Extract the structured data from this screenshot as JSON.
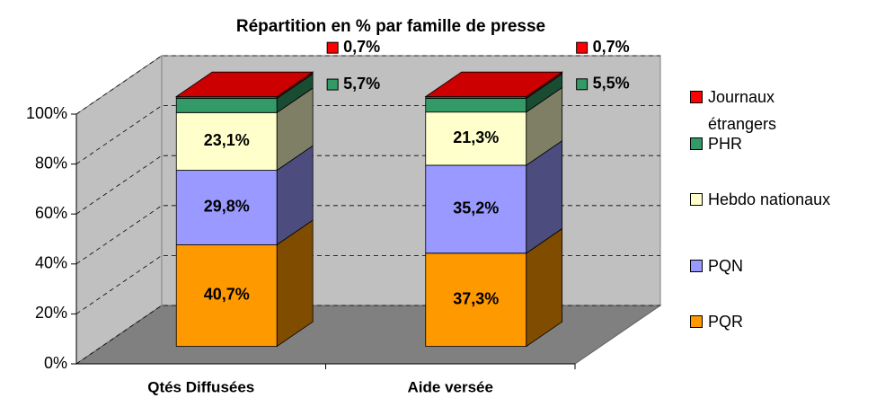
{
  "chart_data": {
    "type": "bar3d_stacked",
    "title": "Répartition en % par famille de presse",
    "categories": [
      "Qtés Diffusées",
      "Aide versée"
    ],
    "series": [
      {
        "name": "PQR",
        "color": "#ff9900",
        "values": [
          40.7,
          37.3
        ],
        "value_labels": [
          "40,7%",
          "37,3%"
        ]
      },
      {
        "name": "PQN",
        "color": "#9999ff",
        "values": [
          29.8,
          35.2
        ],
        "value_labels": [
          "29,8%",
          "35,2%"
        ]
      },
      {
        "name": "Hebdo nationaux",
        "color": "#ffffcc",
        "values": [
          23.1,
          21.3
        ],
        "value_labels": [
          "23,1%",
          "21,3%"
        ]
      },
      {
        "name": "PHR",
        "color": "#339966",
        "values": [
          5.7,
          5.5
        ],
        "value_labels": [
          "5,7%",
          "5,5%"
        ]
      },
      {
        "name": "Journaux étrangers",
        "color": "#ff0000",
        "values": [
          0.7,
          0.7
        ],
        "value_labels": [
          "0,7%",
          "0,7%"
        ]
      }
    ],
    "ylim": [
      0,
      100
    ],
    "yticks": [
      {
        "value": 0,
        "label": "0%"
      },
      {
        "value": 20,
        "label": "20%"
      },
      {
        "value": 40,
        "label": "40%"
      },
      {
        "value": 60,
        "label": "60%"
      },
      {
        "value": 80,
        "label": "80%"
      },
      {
        "value": 100,
        "label": "100%"
      }
    ],
    "grid": true,
    "legend": "right"
  }
}
